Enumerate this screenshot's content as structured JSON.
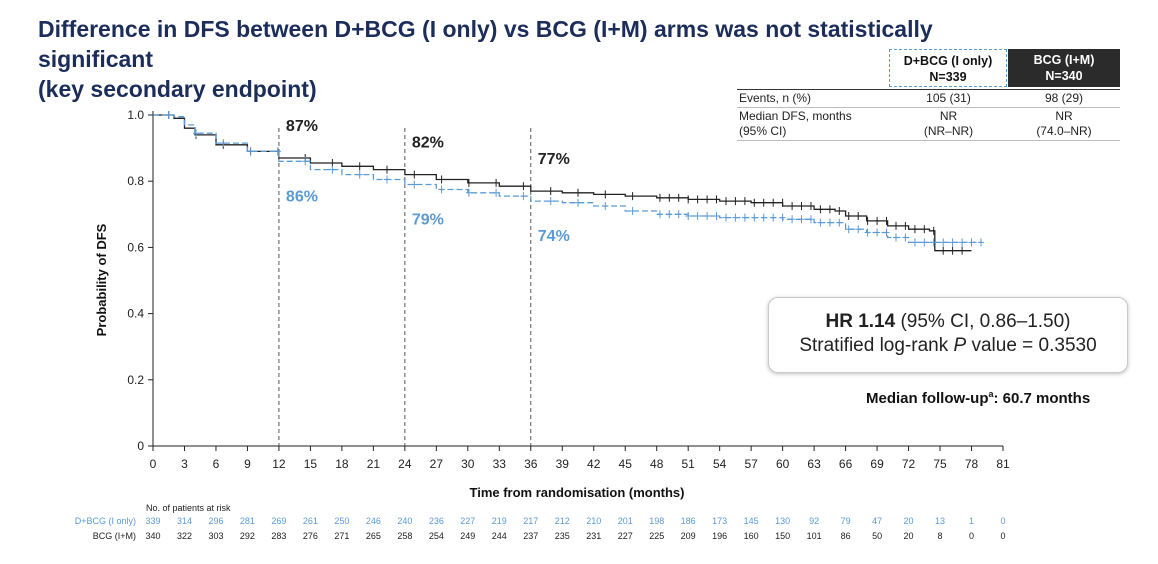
{
  "title_line1": "Difference in DFS between D+BCG (I only) vs BCG (I+M) arms was not statistically significant",
  "title_line2": "(key secondary endpoint)",
  "arms": [
    {
      "name": "D+BCG (I only)",
      "n": "N=339",
      "color": "#5b9bd5"
    },
    {
      "name": "BCG (I+M)",
      "n": "N=340",
      "color": "#222222"
    }
  ],
  "stats": {
    "events_label": "Events, n (%)",
    "events": [
      "105 (31)",
      "98 (29)"
    ],
    "median_label_1": "Median DFS, months",
    "median_label_2": "(95% CI)",
    "median": [
      "NR",
      "NR"
    ],
    "median_ci": [
      "(NR–NR)",
      "(74.0–NR)"
    ]
  },
  "hr": {
    "hr_bold": "HR 1.14",
    "hr_rest": " (95% CI, 0.86–1.50)",
    "pval_pre": "Stratified log-rank ",
    "pval_p": "P",
    "pval_post": " value = 0.3530"
  },
  "followup": {
    "label": "Median follow-up",
    "sup": "a",
    "value": ": 60.7 months"
  },
  "risk_table": {
    "header": "No. of patients at risk",
    "rows": [
      {
        "label": "D+BCG (I only)",
        "values": [
          339,
          314,
          296,
          281,
          269,
          261,
          250,
          246,
          240,
          236,
          227,
          219,
          217,
          212,
          210,
          201,
          198,
          186,
          173,
          145,
          130,
          92,
          79,
          47,
          20,
          13,
          1,
          0
        ]
      },
      {
        "label": "BCG (I+M)",
        "values": [
          340,
          322,
          303,
          292,
          283,
          276,
          271,
          265,
          258,
          254,
          249,
          244,
          237,
          235,
          231,
          227,
          225,
          209,
          196,
          160,
          150,
          101,
          86,
          50,
          20,
          8,
          0,
          0
        ]
      }
    ]
  },
  "chart_data": {
    "type": "line",
    "subtype": "kaplan-meier",
    "xlabel": "Time from randomisation (months)",
    "ylabel": "Probability of DFS",
    "xlim": [
      0,
      81
    ],
    "ylim": [
      0,
      1.0
    ],
    "xticks": [
      0,
      3,
      6,
      9,
      12,
      15,
      18,
      21,
      24,
      27,
      30,
      33,
      36,
      39,
      42,
      45,
      48,
      51,
      54,
      57,
      60,
      63,
      66,
      69,
      72,
      75,
      78,
      81
    ],
    "yticks": [
      {
        "v": 0,
        "label": "0"
      },
      {
        "v": 0.2,
        "label": "0.2"
      },
      {
        "v": 0.4,
        "label": "0.4"
      },
      {
        "v": 0.6,
        "label": "0.6"
      },
      {
        "v": 0.8,
        "label": "0.8"
      },
      {
        "v": 1.0,
        "label": "1.0"
      }
    ],
    "reference_lines": [
      12,
      24,
      36
    ],
    "series": [
      {
        "name": "BCG (I+M)",
        "color": "#222222",
        "dash": false,
        "points": [
          [
            0,
            1.0
          ],
          [
            2,
            0.99
          ],
          [
            3,
            0.96
          ],
          [
            4,
            0.94
          ],
          [
            6,
            0.91
          ],
          [
            9,
            0.89
          ],
          [
            12,
            0.87
          ],
          [
            15,
            0.855
          ],
          [
            18,
            0.845
          ],
          [
            21,
            0.835
          ],
          [
            24,
            0.82
          ],
          [
            27,
            0.805
          ],
          [
            30,
            0.795
          ],
          [
            33,
            0.785
          ],
          [
            36,
            0.77
          ],
          [
            39,
            0.765
          ],
          [
            42,
            0.76
          ],
          [
            45,
            0.755
          ],
          [
            48,
            0.75
          ],
          [
            51,
            0.745
          ],
          [
            54,
            0.74
          ],
          [
            57,
            0.735
          ],
          [
            60,
            0.725
          ],
          [
            63,
            0.715
          ],
          [
            65,
            0.71
          ],
          [
            66,
            0.695
          ],
          [
            68,
            0.68
          ],
          [
            70,
            0.665
          ],
          [
            72,
            0.655
          ],
          [
            74,
            0.65
          ],
          [
            74.5,
            0.59
          ],
          [
            78,
            0.59
          ]
        ]
      },
      {
        "name": "D+BCG (I only)",
        "color": "#5b9bd5",
        "dash": true,
        "points": [
          [
            0,
            1.0
          ],
          [
            2,
            0.995
          ],
          [
            3,
            0.97
          ],
          [
            4,
            0.945
          ],
          [
            6,
            0.915
          ],
          [
            9,
            0.89
          ],
          [
            12,
            0.86
          ],
          [
            15,
            0.835
          ],
          [
            18,
            0.82
          ],
          [
            21,
            0.805
          ],
          [
            24,
            0.79
          ],
          [
            27,
            0.775
          ],
          [
            30,
            0.765
          ],
          [
            33,
            0.755
          ],
          [
            36,
            0.74
          ],
          [
            39,
            0.735
          ],
          [
            42,
            0.725
          ],
          [
            45,
            0.71
          ],
          [
            48,
            0.7
          ],
          [
            51,
            0.695
          ],
          [
            54,
            0.69
          ],
          [
            57,
            0.69
          ],
          [
            60,
            0.685
          ],
          [
            63,
            0.675
          ],
          [
            66,
            0.655
          ],
          [
            68,
            0.645
          ],
          [
            70,
            0.63
          ],
          [
            72,
            0.615
          ],
          [
            75,
            0.615
          ],
          [
            79,
            0.615
          ]
        ]
      }
    ],
    "annotations": [
      {
        "text": "87%",
        "month": 12,
        "arm": "BCG (I+M)",
        "color": "#222222"
      },
      {
        "text": "86%",
        "month": 12,
        "arm": "D+BCG (I only)",
        "color": "#5b9bd5"
      },
      {
        "text": "82%",
        "month": 24,
        "arm": "BCG (I+M)",
        "color": "#222222"
      },
      {
        "text": "79%",
        "month": 24,
        "arm": "D+BCG (I only)",
        "color": "#5b9bd5"
      },
      {
        "text": "77%",
        "month": 36,
        "arm": "BCG (I+M)",
        "color": "#222222"
      },
      {
        "text": "74%",
        "month": 36,
        "arm": "D+BCG (I only)",
        "color": "#5b9bd5"
      }
    ]
  }
}
